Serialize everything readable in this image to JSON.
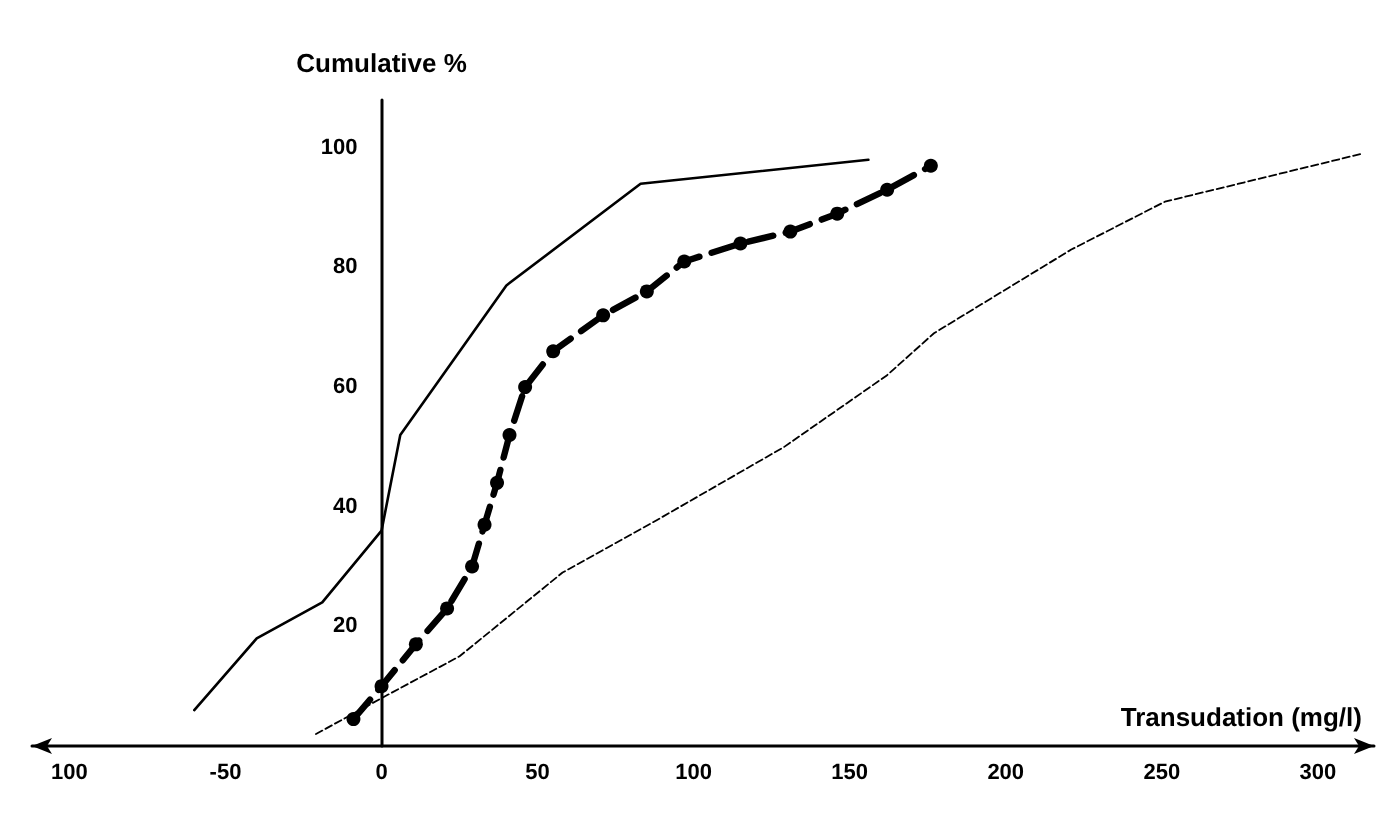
{
  "chart_data": {
    "type": "line",
    "xlabel": "Transudation (mg/l)",
    "ylabel": "Cumulative %",
    "xlim": [
      -112,
      318
    ],
    "xticks": [
      {
        "value": -100,
        "label": "100"
      },
      -50,
      0,
      50,
      100,
      150,
      200,
      250,
      300
    ],
    "ylim": [
      0,
      108
    ],
    "yticks": [
      20,
      40,
      60,
      80,
      100
    ],
    "grid": false,
    "series": [
      {
        "color": "#000000",
        "line_style": "solid",
        "marker": "none",
        "x": [
          -60,
          -40,
          -19,
          0,
          6,
          40,
          83,
          156
        ],
        "values": [
          6,
          18,
          24,
          36,
          52,
          77,
          94,
          98
        ]
      },
      {
        "color": "#000000",
        "line_style": "dashed",
        "marker": "circle",
        "x": [
          -9,
          0,
          11,
          21,
          29,
          33,
          37,
          41,
          46,
          55,
          71,
          85,
          97,
          115,
          131,
          146,
          162,
          176
        ],
        "values": [
          4.5,
          10,
          17,
          23,
          30,
          37,
          44,
          52,
          60,
          66,
          72,
          76,
          81,
          84,
          86,
          89,
          93,
          97
        ]
      },
      {
        "color": "#000000",
        "line_style": "dashed",
        "marker": "none",
        "x": [
          -21,
          0,
          25,
          58,
          89,
          129,
          162,
          177,
          221,
          251,
          314
        ],
        "values": [
          2,
          8,
          15,
          29,
          38,
          50,
          62,
          69,
          83,
          91,
          99
        ]
      }
    ]
  }
}
